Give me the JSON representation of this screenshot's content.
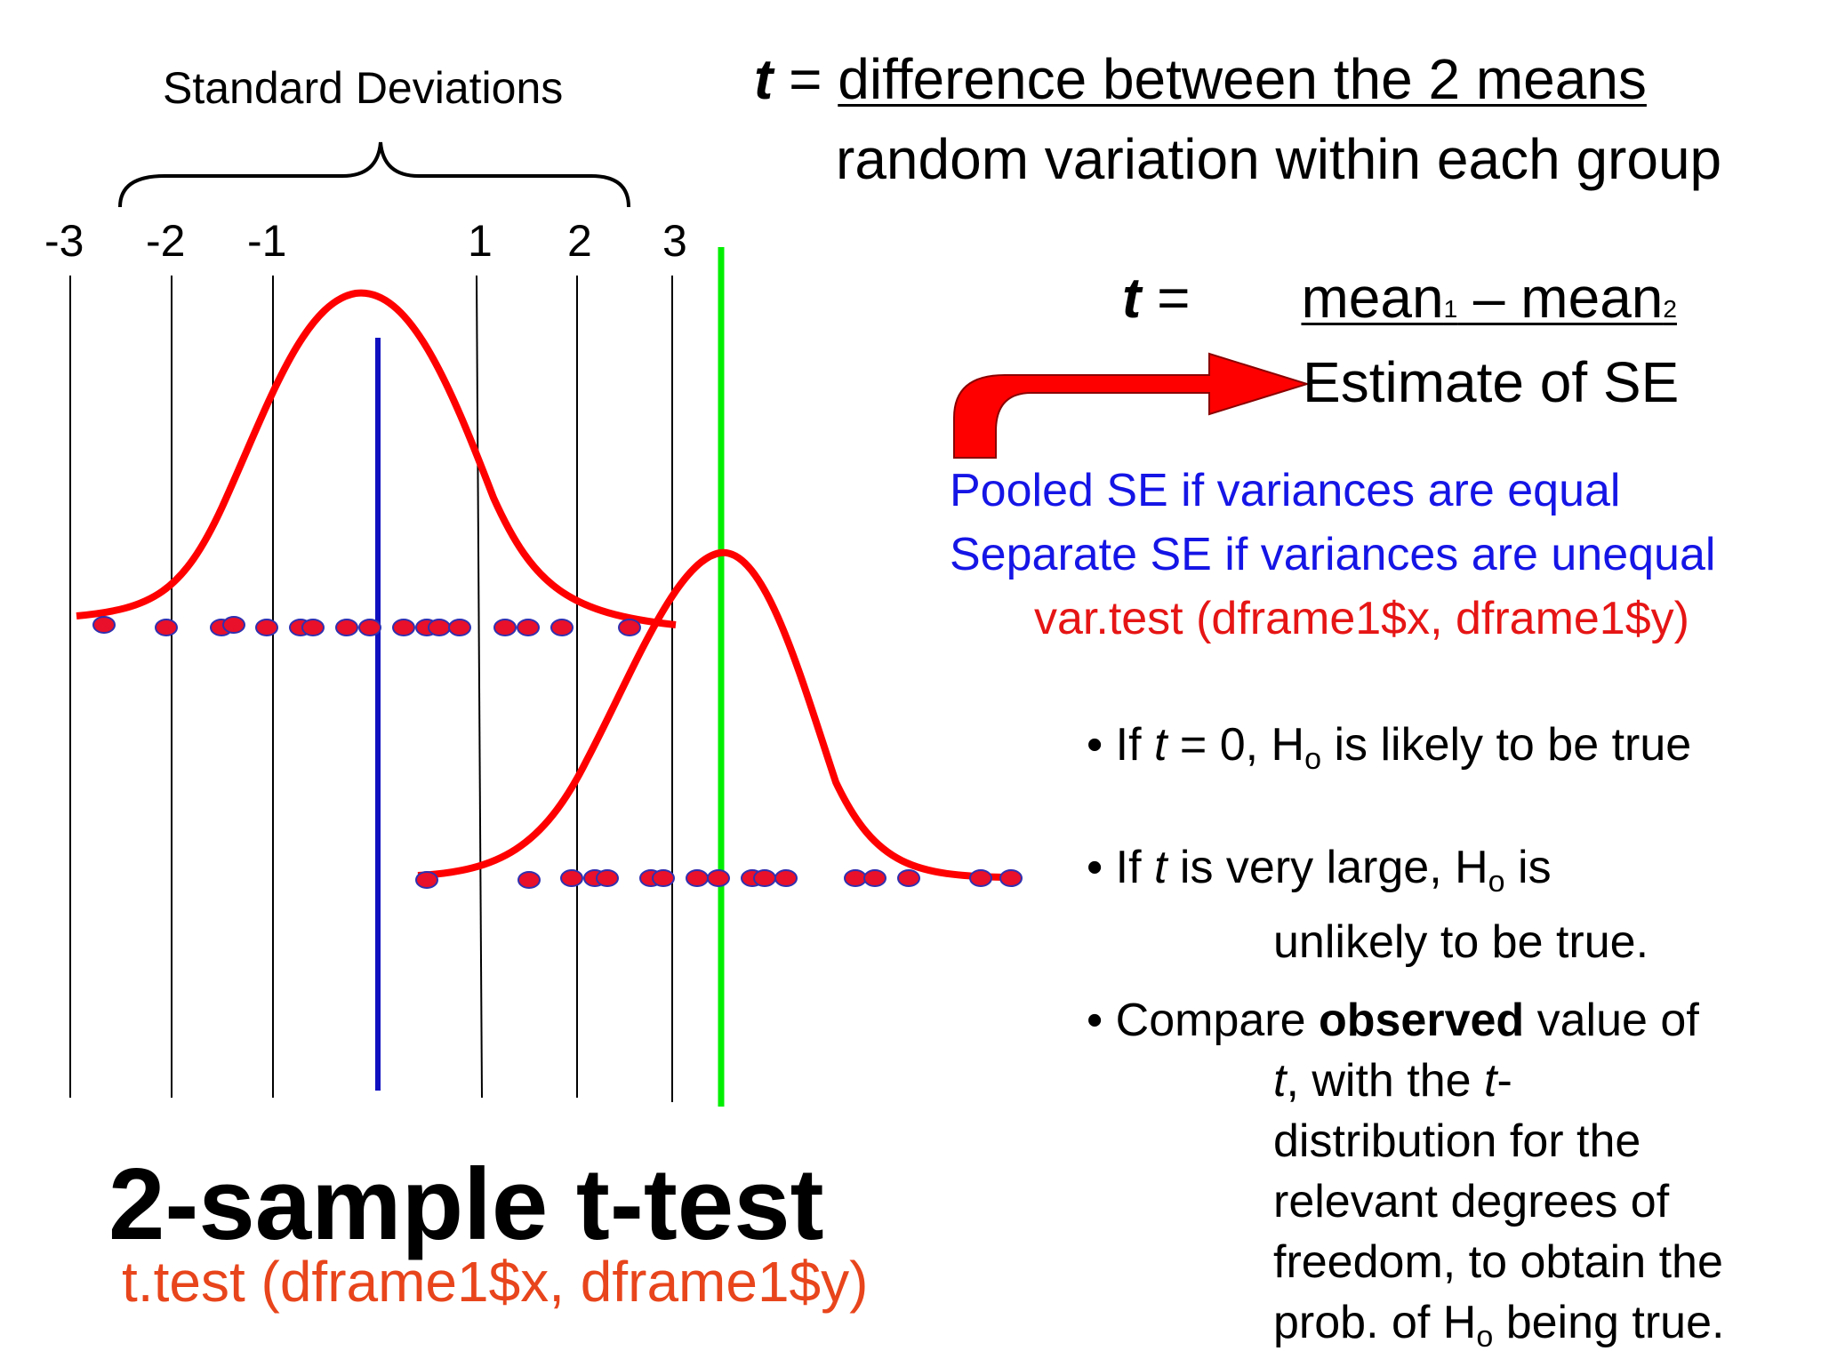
{
  "brace_label": "Standard Deviations",
  "sd_ticks": [
    "-3",
    "-2",
    "-1",
    "1",
    "2",
    "3"
  ],
  "formula1": {
    "lhs": "t",
    "equals": " = ",
    "numerator": "difference between the 2 means",
    "denominator": "random variation within each group"
  },
  "formula2": {
    "lhs": "t",
    "equals": " =",
    "numerator_a": "mean",
    "sub_a": "1",
    "dash": " – mean",
    "sub_b": "2",
    "denominator": "Estimate of SE"
  },
  "se_notes": {
    "pooled": "Pooled SE if variances are equal",
    "separate": "Separate SE if variances are unequal",
    "var_test": "var.test (dframe1$x, dframe1$y)"
  },
  "bullets": {
    "b1_pre": "• If ",
    "b1_t": "t",
    "b1_mid": " = 0, H",
    "b1_sub": "o",
    "b1_post": " is likely to be true",
    "b2_pre": "• If ",
    "b2_t": "t",
    "b2_mid": " is very large, H",
    "b2_sub": "o",
    "b2_post": " is",
    "b2_line2": "unlikely to be true.",
    "b3_pre": "• Compare ",
    "b3_bold": "observed",
    "b3_post": " value of",
    "b3_l2_t": "t",
    "b3_l2_mid": ", with the ",
    "b3_l2_t2": "t",
    "b3_l2_end": "-",
    "b3_l3": "distribution for the",
    "b3_l4": "relevant degrees of",
    "b3_l5": "freedom, to obtain the",
    "b3_l6_pre": "prob. of H",
    "b3_l6_sub": "o",
    "b3_l6_post": " being true."
  },
  "title": "2-sample t-test",
  "ttest_code": "t.test (dframe1$x, dframe1$y)",
  "colors": {
    "curve": "#ff0000",
    "dot_fill": "#e8102a",
    "dot_stroke": "#3030b0",
    "mean1_line": "#1010c0",
    "mean2_line": "#00ee00",
    "arrow": "#ff0000",
    "blue_text": "#1515e6",
    "red_text": "#e61515",
    "code_text": "#e8451c"
  },
  "icons": [
    "curved-arrow-icon",
    "curly-brace-icon"
  ]
}
